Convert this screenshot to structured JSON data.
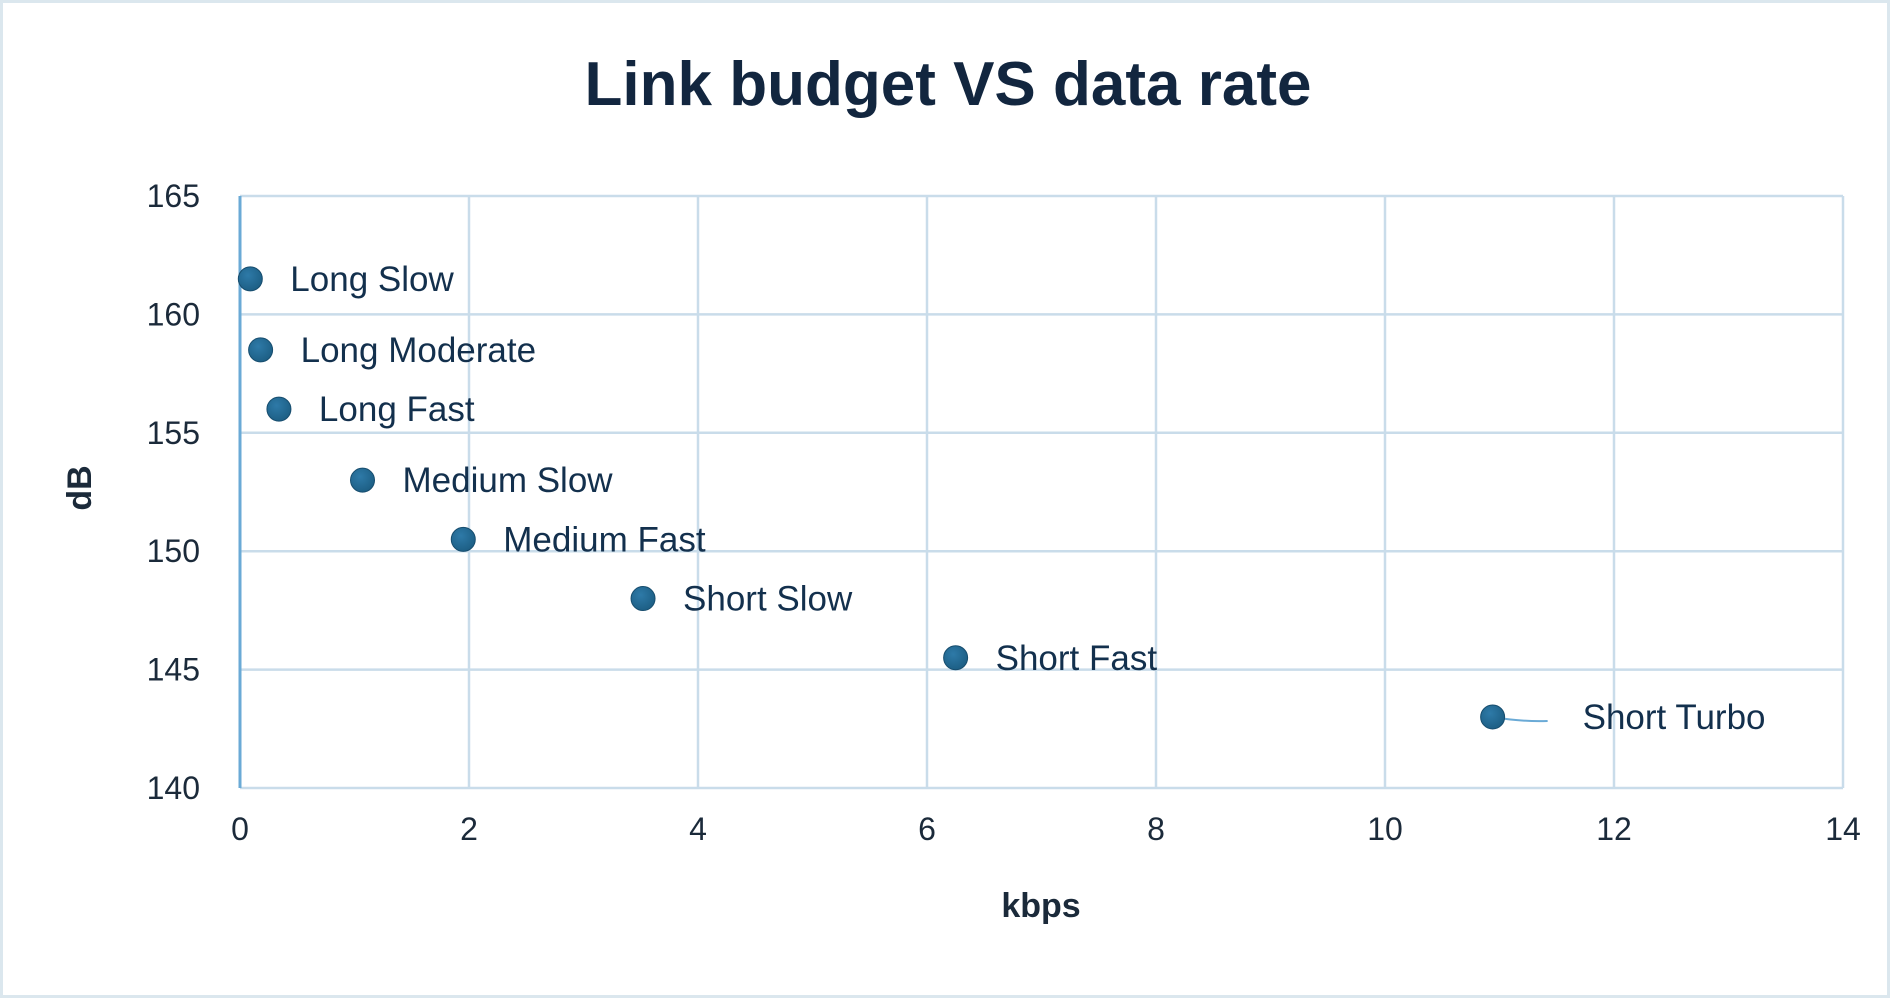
{
  "chart_data": {
    "type": "scatter",
    "title": "Link budget VS data rate",
    "xlabel": "kbps",
    "ylabel": "dB",
    "xlim": [
      0,
      14
    ],
    "ylim": [
      140,
      165
    ],
    "x_ticks": [
      0,
      2,
      4,
      6,
      8,
      10,
      12,
      14
    ],
    "y_ticks": [
      140,
      145,
      150,
      155,
      160,
      165
    ],
    "grid": true,
    "legend": "none",
    "colors": {
      "marker": "#1d5f85",
      "grid": "#c9dcea",
      "leader_line": "#6aaad6"
    },
    "points": [
      {
        "label": "Long Slow",
        "x": 0.09,
        "y": 161.5
      },
      {
        "label": "Long Moderate",
        "x": 0.18,
        "y": 158.5
      },
      {
        "label": "Long Fast",
        "x": 0.34,
        "y": 156
      },
      {
        "label": "Medium Slow",
        "x": 1.07,
        "y": 153
      },
      {
        "label": "Medium Fast",
        "x": 1.95,
        "y": 150.5
      },
      {
        "label": "Short Slow",
        "x": 3.52,
        "y": 148
      },
      {
        "label": "Short Fast",
        "x": 6.25,
        "y": 145.5
      },
      {
        "label": "Short Turbo",
        "x": 10.94,
        "y": 143
      }
    ]
  }
}
